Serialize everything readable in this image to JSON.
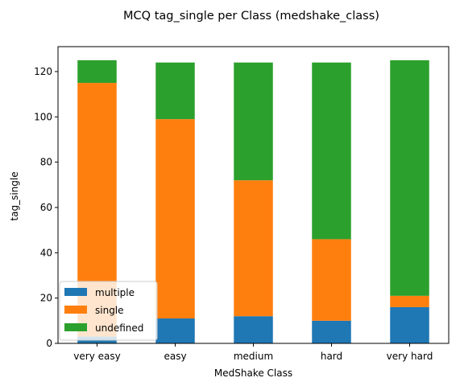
{
  "chart_data": {
    "type": "bar",
    "stacked": true,
    "title": "MCQ tag_single per Class (medshake_class)",
    "xlabel": "MedShake Class",
    "ylabel": "tag_single",
    "categories": [
      "very easy",
      "easy",
      "medium",
      "hard",
      "very hard"
    ],
    "series": [
      {
        "name": "multiple",
        "color": "#1f77b4",
        "values": [
          3,
          11,
          12,
          10,
          16
        ]
      },
      {
        "name": "single",
        "color": "#ff7f0e",
        "values": [
          112,
          88,
          60,
          36,
          5
        ]
      },
      {
        "name": "undefined",
        "color": "#2ca02c",
        "values": [
          10,
          25,
          52,
          78,
          104
        ]
      }
    ],
    "ylim": [
      0,
      131
    ],
    "yticks": [
      0,
      20,
      40,
      60,
      80,
      100,
      120
    ],
    "grid": false,
    "legend_position": "lower-left"
  }
}
